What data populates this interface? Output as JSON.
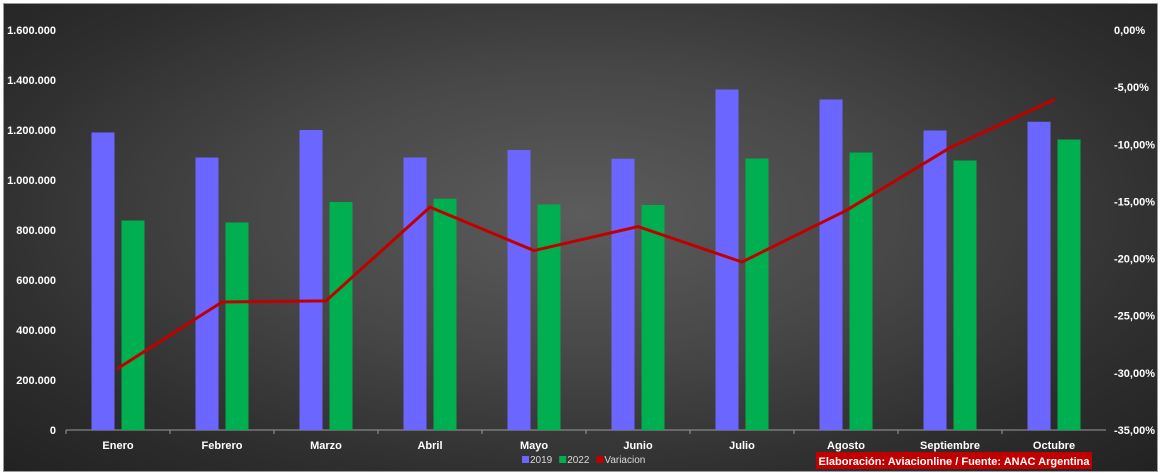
{
  "chart_data": {
    "type": "bar",
    "categories": [
      "Enero",
      "Febrero",
      "Marzo",
      "Abril",
      "Mayo",
      "Junio",
      "Julio",
      "Agosto",
      "Septiembre",
      "Octubre"
    ],
    "series": [
      {
        "name": "2019",
        "type": "bar",
        "axis": "left",
        "color": "#6b66ff",
        "values": [
          1190000,
          1090000,
          1200000,
          1090000,
          1120000,
          1085000,
          1362000,
          1322000,
          1198000,
          1233000
        ]
      },
      {
        "name": "2022",
        "type": "bar",
        "axis": "left",
        "color": "#00b050",
        "values": [
          838000,
          830000,
          912000,
          925000,
          902000,
          900000,
          1086000,
          1110000,
          1078000,
          1162000
        ]
      },
      {
        "name": "Variacion",
        "type": "line",
        "axis": "right",
        "color": "#c00000",
        "values": [
          -29.6,
          -23.8,
          -23.7,
          -15.5,
          -19.3,
          -17.2,
          -20.3,
          -15.8,
          -10.3,
          -6.1
        ]
      }
    ],
    "left_axis": {
      "min": 0,
      "max": 1600000,
      "ticks": [
        "0",
        "200.000",
        "400.000",
        "600.000",
        "800.000",
        "1.000.000",
        "1.200.000",
        "1.400.000",
        "1.600.000"
      ]
    },
    "right_axis": {
      "min": -35,
      "max": 0,
      "ticks": [
        "-35,00%",
        "-30,00%",
        "-25,00%",
        "-20,00%",
        "-15,00%",
        "-10,00%",
        "-5,00%",
        "0,00%"
      ]
    },
    "legend": {
      "position": "bottom",
      "items": [
        {
          "label": "2019",
          "color": "#6b66ff"
        },
        {
          "label": "2022",
          "color": "#00b050"
        },
        {
          "label": "Variacion",
          "color": "#c00000"
        }
      ]
    },
    "grid": false,
    "source_note": "Elaboración: Aviacionline / Fuente: ANAC Argentina",
    "source_note_color": "#c00000"
  }
}
